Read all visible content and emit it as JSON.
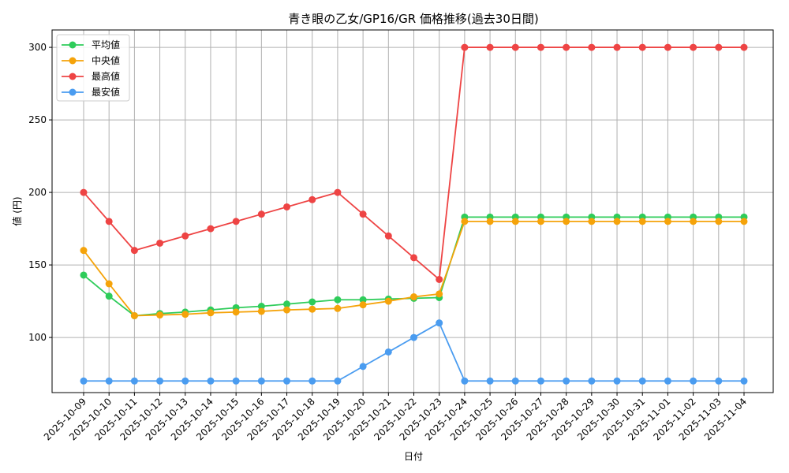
{
  "chart_data": {
    "type": "line",
    "title": "青き眼の乙女/GP16/GR 価格推移(過去30日間)",
    "xlabel": "日付",
    "ylabel": "値 (円)",
    "categories": [
      "2025-10-09",
      "2025-10-10",
      "2025-10-11",
      "2025-10-12",
      "2025-10-13",
      "2025-10-14",
      "2025-10-15",
      "2025-10-16",
      "2025-10-17",
      "2025-10-18",
      "2025-10-19",
      "2025-10-20",
      "2025-10-21",
      "2025-10-22",
      "2025-10-23",
      "2025-10-24",
      "2025-10-25",
      "2025-10-26",
      "2025-10-27",
      "2025-10-28",
      "2025-10-29",
      "2025-10-30",
      "2025-10-31",
      "2025-11-01",
      "2025-11-02",
      "2025-11-03",
      "2025-11-04"
    ],
    "yticks": [
      100,
      150,
      200,
      250,
      300
    ],
    "ylim": [
      62,
      312
    ],
    "grid": true,
    "legend_position": "top-left",
    "series": [
      {
        "name": "平均値",
        "color": "#2ecc5a",
        "values": [
          143,
          128.5,
          115,
          116.5,
          117.5,
          119,
          120.5,
          121.5,
          123,
          124.5,
          126,
          126,
          126.5,
          127,
          127.5,
          183,
          183,
          183,
          183,
          183,
          183,
          183,
          183,
          183,
          183,
          183,
          183
        ]
      },
      {
        "name": "中央値",
        "color": "#f5a30a",
        "values": [
          160,
          137,
          115,
          115.5,
          116,
          117,
          117.5,
          118,
          119,
          119.5,
          120,
          122.5,
          125,
          128,
          130,
          180,
          180,
          180,
          180,
          180,
          180,
          180,
          180,
          180,
          180,
          180,
          180
        ]
      },
      {
        "name": "最高値",
        "color": "#ee4444",
        "values": [
          200,
          180,
          160,
          165,
          170,
          175,
          180,
          185,
          190,
          195,
          200,
          185,
          170,
          155,
          140,
          300,
          300,
          300,
          300,
          300,
          300,
          300,
          300,
          300,
          300,
          300,
          300
        ]
      },
      {
        "name": "最安値",
        "color": "#4a9cf0",
        "values": [
          70,
          70,
          70,
          70,
          70,
          70,
          70,
          70,
          70,
          70,
          70,
          80,
          90,
          100,
          110,
          70,
          70,
          70,
          70,
          70,
          70,
          70,
          70,
          70,
          70,
          70,
          70
        ]
      }
    ]
  }
}
